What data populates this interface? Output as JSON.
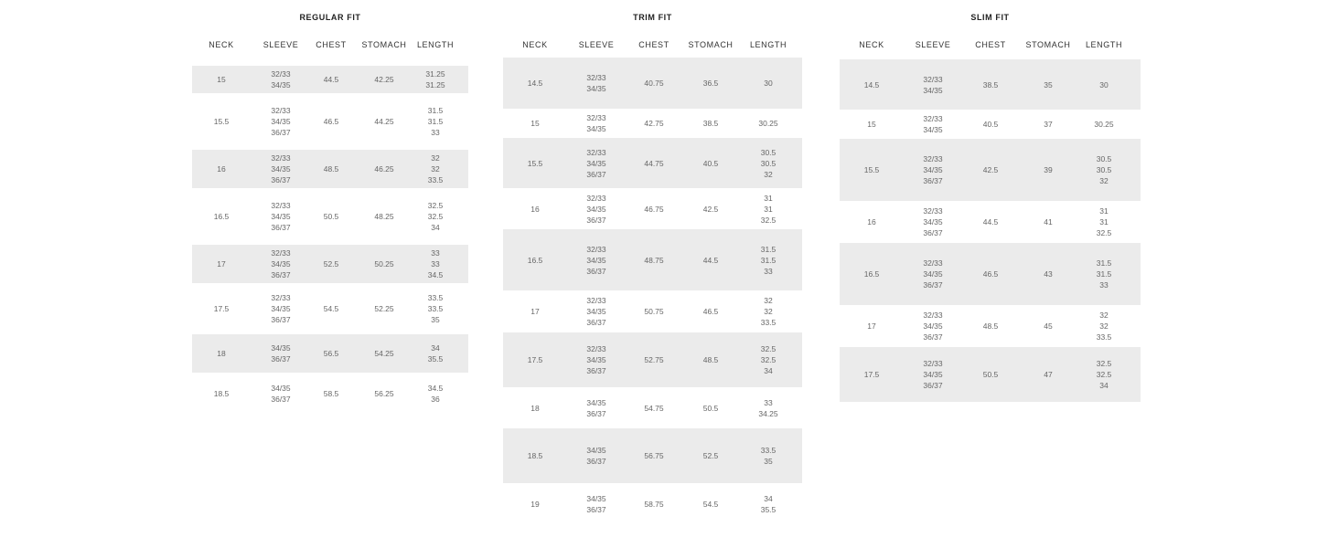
{
  "columns": [
    "NECK",
    "SLEEVE",
    "CHEST",
    "STOMACH",
    "LENGTH"
  ],
  "tables": [
    {
      "title": "REGULAR FIT",
      "rows": [
        {
          "neck": "15",
          "sleeve": [
            "32/33",
            "34/35"
          ],
          "chest": "44.5",
          "stomach": "42.25",
          "length": [
            "31.25",
            "31.25"
          ]
        },
        {
          "neck": "15.5",
          "sleeve": [
            "32/33",
            "34/35",
            "36/37"
          ],
          "chest": "46.5",
          "stomach": "44.25",
          "length": [
            "31.5",
            "31.5",
            "33"
          ]
        },
        {
          "neck": "16",
          "sleeve": [
            "32/33",
            "34/35",
            "36/37"
          ],
          "chest": "48.5",
          "stomach": "46.25",
          "length": [
            "32",
            "32",
            "33.5"
          ]
        },
        {
          "neck": "16.5",
          "sleeve": [
            "32/33",
            "34/35",
            "36/37"
          ],
          "chest": "50.5",
          "stomach": "48.25",
          "length": [
            "32.5",
            "32.5",
            "34"
          ]
        },
        {
          "neck": "17",
          "sleeve": [
            "32/33",
            "34/35",
            "36/37"
          ],
          "chest": "52.5",
          "stomach": "50.25",
          "length": [
            "33",
            "33",
            "34.5"
          ]
        },
        {
          "neck": "17.5",
          "sleeve": [
            "32/33",
            "34/35",
            "36/37"
          ],
          "chest": "54.5",
          "stomach": "52.25",
          "length": [
            "33.5",
            "33.5",
            "35"
          ]
        },
        {
          "neck": "18",
          "sleeve": [
            "34/35",
            "36/37"
          ],
          "chest": "56.5",
          "stomach": "54.25",
          "length": [
            "34",
            "35.5"
          ]
        },
        {
          "neck": "18.5",
          "sleeve": [
            "34/35",
            "36/37"
          ],
          "chest": "58.5",
          "stomach": "56.25",
          "length": [
            "34.5",
            "36"
          ]
        }
      ]
    },
    {
      "title": "TRIM FIT",
      "rows": [
        {
          "neck": "14.5",
          "sleeve": [
            "32/33",
            "34/35"
          ],
          "chest": "40.75",
          "stomach": "36.5",
          "length": [
            "30"
          ]
        },
        {
          "neck": "15",
          "sleeve": [
            "32/33",
            "34/35"
          ],
          "chest": "42.75",
          "stomach": "38.5",
          "length": [
            "30.25"
          ]
        },
        {
          "neck": "15.5",
          "sleeve": [
            "32/33",
            "34/35",
            "36/37"
          ],
          "chest": "44.75",
          "stomach": "40.5",
          "length": [
            "30.5",
            "30.5",
            "32"
          ]
        },
        {
          "neck": "16",
          "sleeve": [
            "32/33",
            "34/35",
            "36/37"
          ],
          "chest": "46.75",
          "stomach": "42.5",
          "length": [
            "31",
            "31",
            "32.5"
          ]
        },
        {
          "neck": "16.5",
          "sleeve": [
            "32/33",
            "34/35",
            "36/37"
          ],
          "chest": "48.75",
          "stomach": "44.5",
          "length": [
            "31.5",
            "31.5",
            "33"
          ]
        },
        {
          "neck": "17",
          "sleeve": [
            "32/33",
            "34/35",
            "36/37"
          ],
          "chest": "50.75",
          "stomach": "46.5",
          "length": [
            "32",
            "32",
            "33.5"
          ]
        },
        {
          "neck": "17.5",
          "sleeve": [
            "32/33",
            "34/35",
            "36/37"
          ],
          "chest": "52.75",
          "stomach": "48.5",
          "length": [
            "32.5",
            "32.5",
            "34"
          ]
        },
        {
          "neck": "18",
          "sleeve": [
            "34/35",
            "36/37"
          ],
          "chest": "54.75",
          "stomach": "50.5",
          "length": [
            "33",
            "34.25"
          ]
        },
        {
          "neck": "18.5",
          "sleeve": [
            "34/35",
            "36/37"
          ],
          "chest": "56.75",
          "stomach": "52.5",
          "length": [
            "33.5",
            "35"
          ]
        },
        {
          "neck": "19",
          "sleeve": [
            "34/35",
            "36/37"
          ],
          "chest": "58.75",
          "stomach": "54.5",
          "length": [
            "34",
            "35.5"
          ]
        }
      ]
    },
    {
      "title": "SLIM FIT",
      "rows": [
        {
          "neck": "14.5",
          "sleeve": [
            "32/33",
            "34/35"
          ],
          "chest": "38.5",
          "stomach": "35",
          "length": [
            "30"
          ]
        },
        {
          "neck": "15",
          "sleeve": [
            "32/33",
            "34/35"
          ],
          "chest": "40.5",
          "stomach": "37",
          "length": [
            "30.25"
          ]
        },
        {
          "neck": "15.5",
          "sleeve": [
            "32/33",
            "34/35",
            "36/37"
          ],
          "chest": "42.5",
          "stomach": "39",
          "length": [
            "30.5",
            "30.5",
            "32"
          ]
        },
        {
          "neck": "16",
          "sleeve": [
            "32/33",
            "34/35",
            "36/37"
          ],
          "chest": "44.5",
          "stomach": "41",
          "length": [
            "31",
            "31",
            "32.5"
          ]
        },
        {
          "neck": "16.5",
          "sleeve": [
            "32/33",
            "34/35",
            "36/37"
          ],
          "chest": "46.5",
          "stomach": "43",
          "length": [
            "31.5",
            "31.5",
            "33"
          ]
        },
        {
          "neck": "17",
          "sleeve": [
            "32/33",
            "34/35",
            "36/37"
          ],
          "chest": "48.5",
          "stomach": "45",
          "length": [
            "32",
            "32",
            "33.5"
          ]
        },
        {
          "neck": "17.5",
          "sleeve": [
            "32/33",
            "34/35",
            "36/37"
          ],
          "chest": "50.5",
          "stomach": "47",
          "length": [
            "32.5",
            "32.5",
            "34"
          ]
        }
      ]
    }
  ]
}
